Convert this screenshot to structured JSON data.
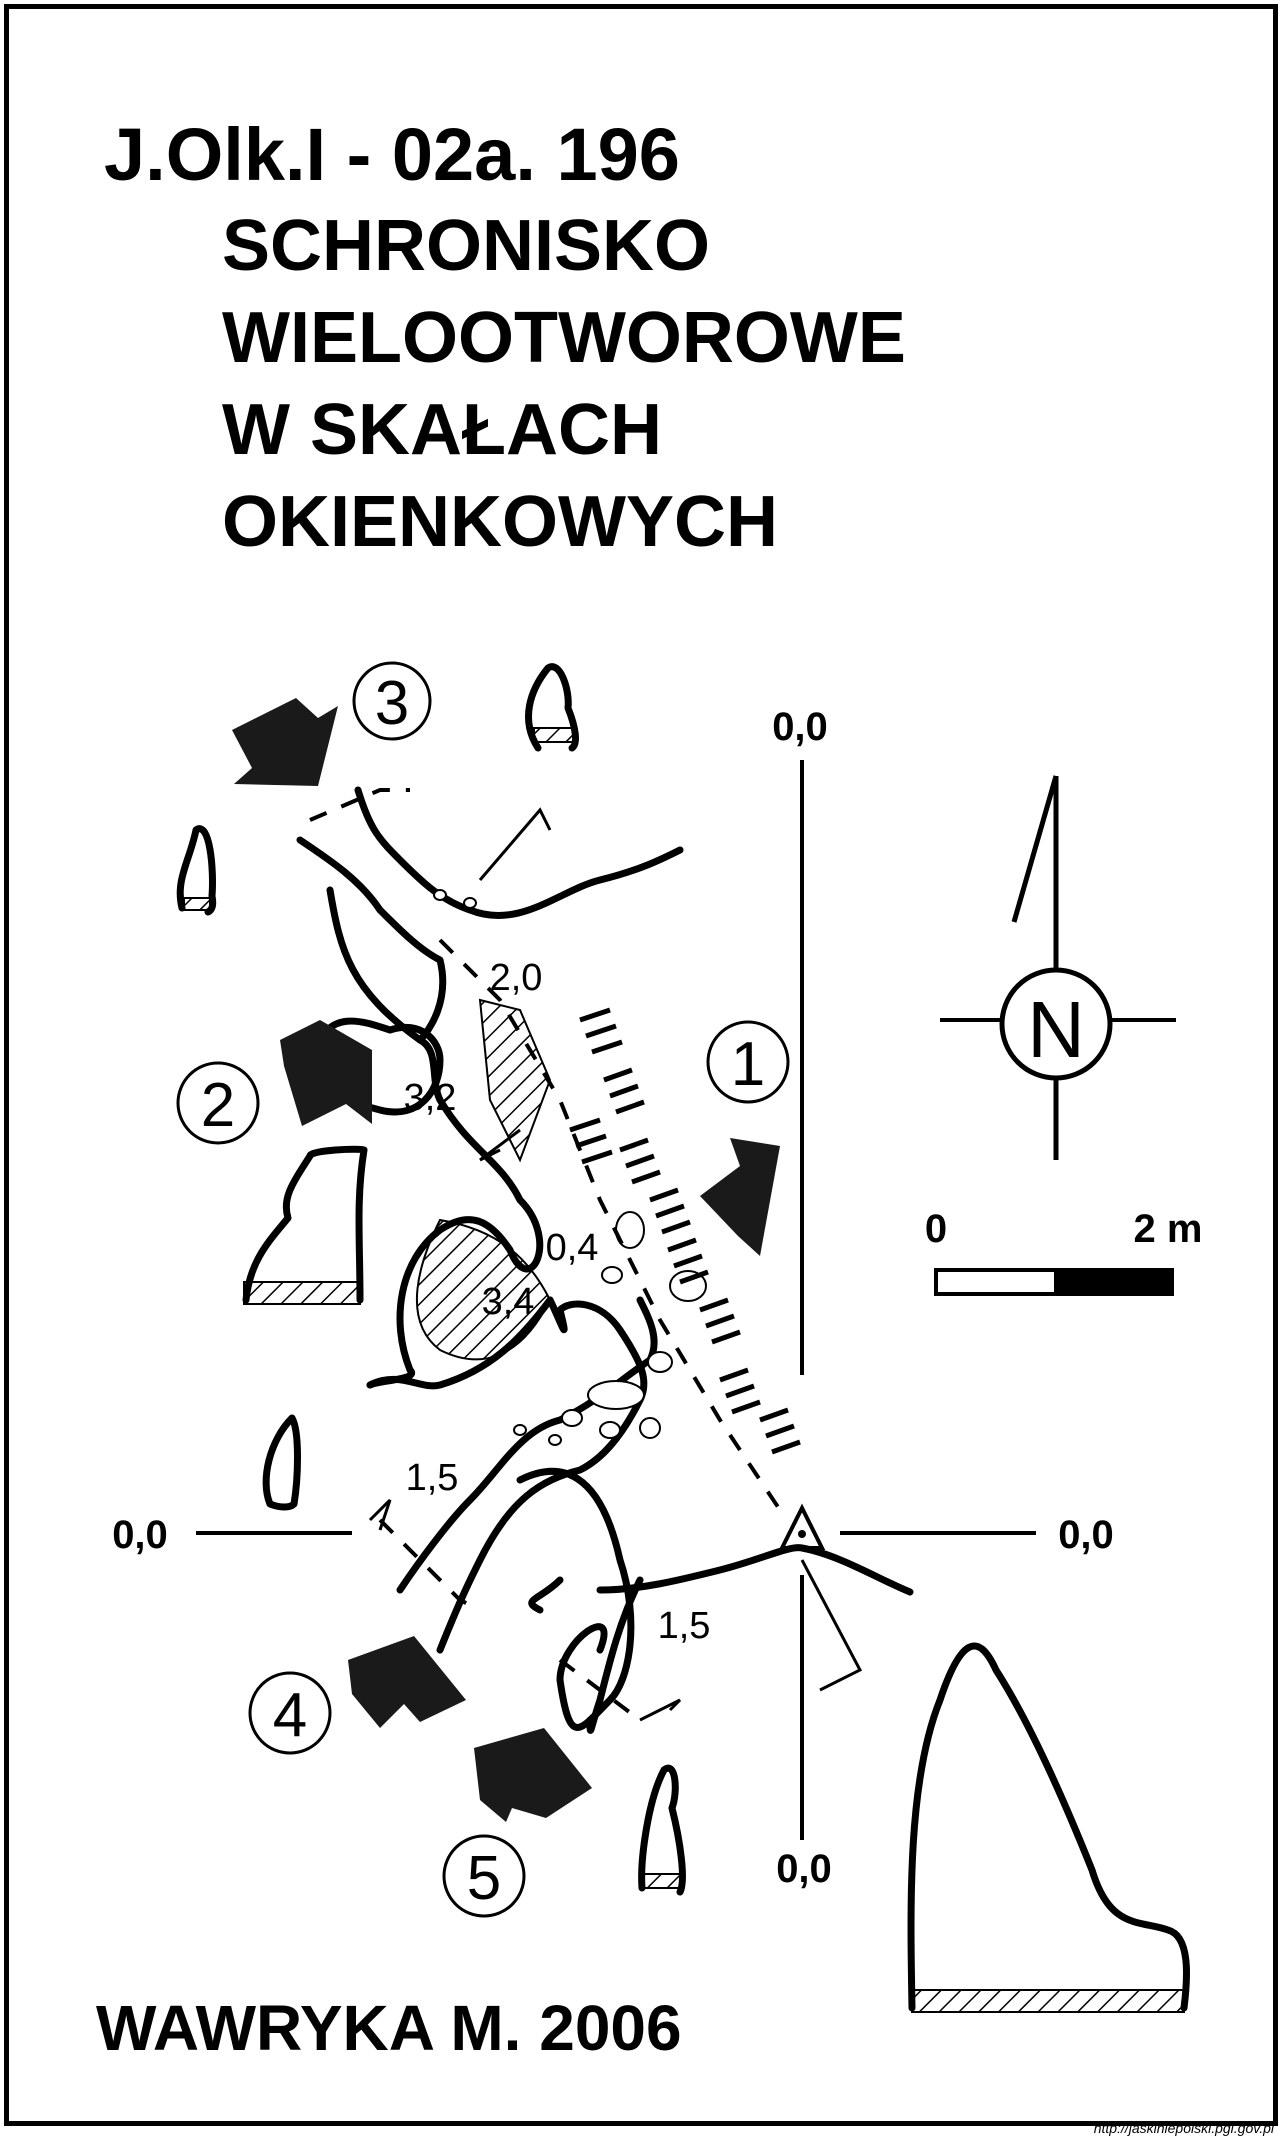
{
  "header": {
    "code": "J.Olk.I - 02a. 196",
    "name_lines": [
      "SCHRONISKO",
      "WIELOOTWOROWE",
      "W SKAŁACH",
      "OKIENKOWYCH"
    ]
  },
  "author": "WAWRYKA M. 2006",
  "source_url": "http://jaskiniepolski.pgi.gov.pl",
  "plan": {
    "axis_labels": {
      "top": "0,0",
      "bottom": "0,0",
      "left": "0,0",
      "right": "0,0"
    },
    "north_symbol": "N",
    "scale": {
      "start": "0",
      "end": "2 m"
    },
    "entrances": [
      "1",
      "2",
      "3",
      "4",
      "5"
    ],
    "heights": [
      "2,0",
      "3,2",
      "0,4",
      "3,4",
      "1,5",
      "1,5"
    ]
  },
  "colors": {
    "ink": "#000000",
    "paper": "#ffffff"
  }
}
